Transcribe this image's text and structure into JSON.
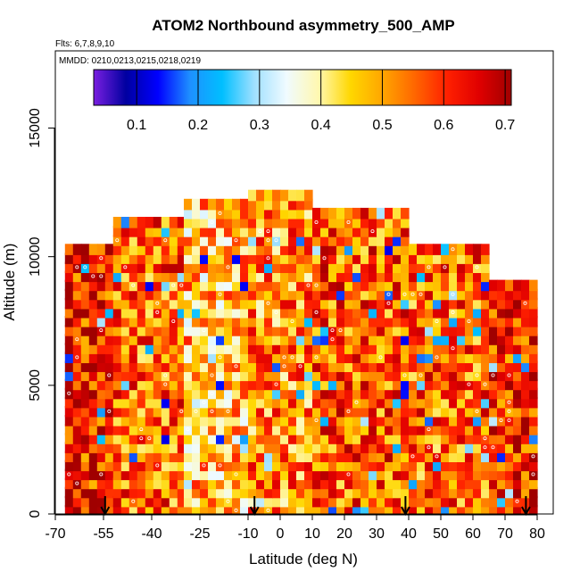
{
  "chart_data": {
    "type": "heatmap",
    "title": "ATOM2 Northbound asymmetry_500_AMP",
    "flights_note": "Flts: 6,7,8,9,10",
    "dates_note": "MMDD: 0210,0213,0215,0218,0219",
    "xlabel": "Latitude (deg N)",
    "ylabel": "Altitude (m)",
    "xlim": [
      -70,
      85
    ],
    "ylim": [
      0,
      18000
    ],
    "x_ticks": [
      -70,
      -55,
      -40,
      -25,
      -10,
      0,
      10,
      20,
      30,
      40,
      50,
      60,
      70,
      80
    ],
    "y_ticks": [
      0,
      5000,
      10000,
      15000
    ],
    "colorbar": {
      "range": [
        0.03,
        0.71
      ],
      "ticks": [
        0.1,
        0.2,
        0.3,
        0.4,
        0.5,
        0.6,
        0.7
      ],
      "colors": [
        "#7a1fe0",
        "#0000a0",
        "#0000ff",
        "#1e90ff",
        "#00bfff",
        "#a0e0ff",
        "#f0fbff",
        "#fff8b0",
        "#ffd700",
        "#ffa500",
        "#ff6600",
        "#ff2000",
        "#e00000",
        "#a00000"
      ]
    },
    "profile_latitudes": [
      -54.5,
      -8,
      39,
      76.5
    ],
    "profiles": [
      {
        "lat_range": [
          -67,
          -52
        ],
        "alt_range": [
          0,
          10500
        ],
        "value": 0.62
      },
      {
        "lat_range": [
          -52,
          -30
        ],
        "alt_range": [
          0,
          11500
        ],
        "value": 0.55
      },
      {
        "lat_range": [
          -30,
          -10
        ],
        "alt_range": [
          0,
          12000
        ],
        "value": 0.47
      },
      {
        "lat_range": [
          -10,
          10
        ],
        "alt_range": [
          0,
          12500
        ],
        "value": 0.52
      },
      {
        "lat_range": [
          10,
          40
        ],
        "alt_range": [
          0,
          11800
        ],
        "value": 0.56
      },
      {
        "lat_range": [
          40,
          65
        ],
        "alt_range": [
          0,
          10300
        ],
        "value": 0.55
      },
      {
        "lat_range": [
          65,
          80
        ],
        "alt_range": [
          0,
          8800
        ],
        "value": 0.61
      }
    ]
  }
}
